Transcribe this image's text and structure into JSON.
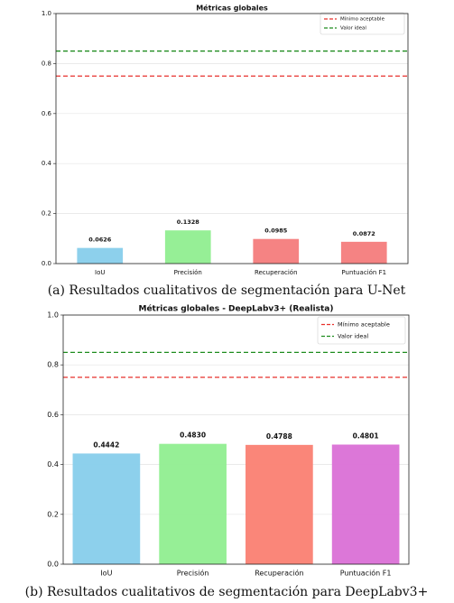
{
  "chart_data": [
    {
      "type": "bar",
      "title": "Métricas globales",
      "caption": "(a) Resultados cualitativos de segmentación para U-Net",
      "categories": [
        "IoU",
        "Precisión",
        "Recuperación",
        "Puntuación F1"
      ],
      "values": [
        0.0626,
        0.1328,
        0.0985,
        0.0872
      ],
      "colors": [
        "#87ceeb",
        "#90ee90",
        "#f47c7c",
        "#f47c7c"
      ],
      "reference_lines": [
        {
          "name": "Mínimo aceptable",
          "value": 0.75,
          "color": "#e8302c"
        },
        {
          "name": "Valor ideal",
          "value": 0.85,
          "color": "#1e8c1e"
        }
      ],
      "legend": "upper right",
      "ylim": [
        0,
        1
      ],
      "yticks": [
        {
          "value": 0,
          "label": "0.0"
        },
        0.2,
        0.4,
        0.6,
        0.8,
        {
          "value": 1,
          "label": "1.0"
        }
      ],
      "grid": true
    },
    {
      "type": "bar",
      "title": "Métricas globales - DeepLabv3+ (Realista)",
      "caption": "(b) Resultados cualitativos de segmentación para DeepLabv3+",
      "categories": [
        "IoU",
        "Precisión",
        "Recuperación",
        "Puntuación F1"
      ],
      "values": [
        0.4442,
        0.483,
        0.4788,
        0.4801
      ],
      "value_labels": [
        "0.4442",
        "0.4830",
        "0.4788",
        "0.4801"
      ],
      "colors": [
        "#87ceeb",
        "#90ee90",
        "#fa8072",
        "#da70d6"
      ],
      "reference_lines": [
        {
          "name": "Mínimo aceptable",
          "value": 0.75,
          "color": "#e8302c"
        },
        {
          "name": "Valor ideal",
          "value": 0.85,
          "color": "#1e8c1e"
        }
      ],
      "legend": "upper right",
      "ylim": [
        0,
        1
      ],
      "yticks": [
        {
          "value": 0,
          "label": "0.0"
        },
        0.2,
        0.4,
        0.6,
        0.8,
        {
          "value": 1,
          "label": "1.0"
        }
      ],
      "grid": true
    }
  ]
}
